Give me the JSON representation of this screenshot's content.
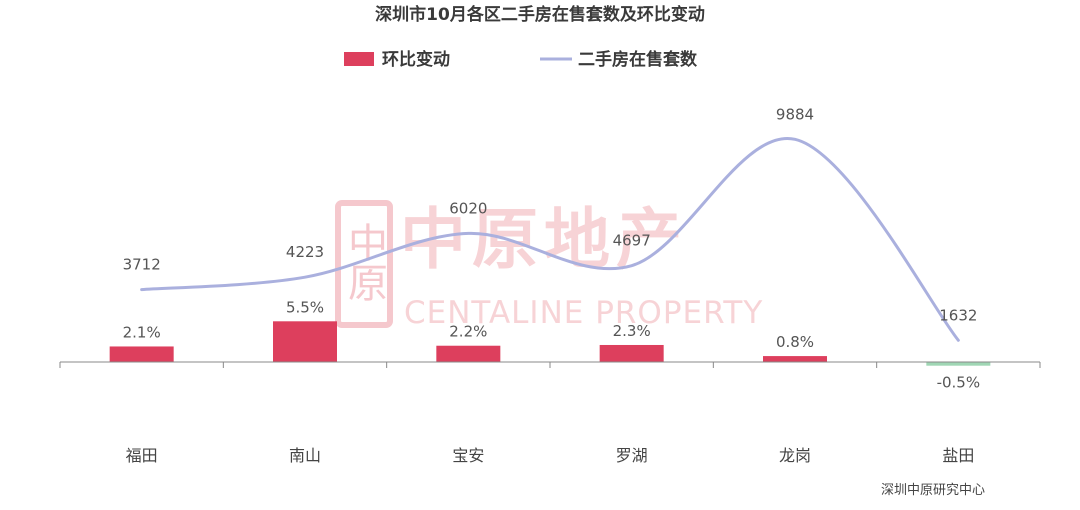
{
  "chart_data": {
    "type": "bar+line",
    "title": "深圳市10月各区二手房在售套数及环比变动",
    "categories": [
      "福田",
      "南山",
      "宝安",
      "罗湖",
      "龙岗",
      "盐田"
    ],
    "series": [
      {
        "name": "环比变动",
        "type": "bar",
        "values": [
          2.1,
          5.5,
          2.2,
          2.3,
          0.8,
          -0.5
        ],
        "labels": [
          "2.1%",
          "5.5%",
          "2.2%",
          "2.3%",
          "0.8%",
          "-0.5%"
        ],
        "color": "#dd3f5d",
        "negative_color": "#9fd6b4"
      },
      {
        "name": "二手房在售套数",
        "type": "line",
        "smooth": true,
        "values": [
          3712,
          4223,
          6020,
          4697,
          9884,
          1632
        ],
        "labels": [
          "3712",
          "4223",
          "6020",
          "4697",
          "9884",
          "1632"
        ],
        "color": "#aab0de"
      }
    ],
    "bar_axis_range": [
      -2.0,
      7.5
    ],
    "line_axis_range": [
      0,
      11500
    ],
    "legend_position": "top-center",
    "grid": false
  },
  "watermark": {
    "text_cn": "中原地产",
    "text_en": "CENTALINE PROPERTY",
    "seal_text": "中原"
  },
  "source_note": "深圳中原研究中心",
  "colors": {
    "title": "#3a3a3a",
    "axis": "#888888",
    "label": "#555555",
    "watermark": "#f7d3d6"
  }
}
